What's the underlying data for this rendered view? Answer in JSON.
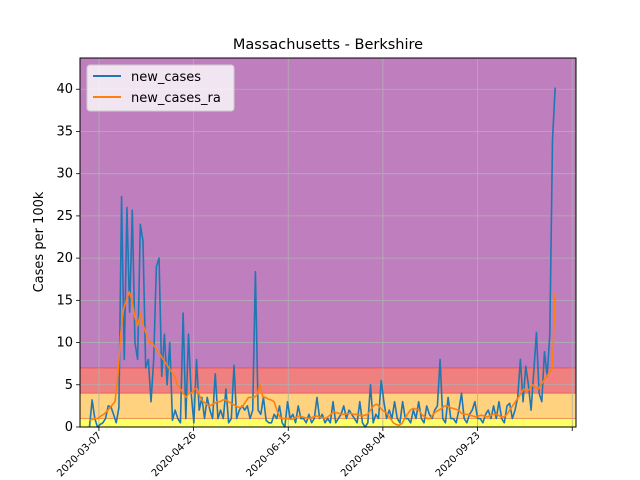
{
  "chart_data": {
    "type": "line",
    "title": "Massachusetts - Berkshire",
    "xlabel": "",
    "ylabel": "Cases per 100k",
    "x_start": "2020-03-02",
    "x_end": "2020-11-03",
    "xlim": [
      "2020-02-26",
      "2020-11-14"
    ],
    "ylim": [
      0,
      43.7
    ],
    "grid": true,
    "legend_position": "upper-left",
    "x_ticks": [
      "2020-03-07",
      "2020-04-26",
      "2020-06-15",
      "2020-08-04",
      "2020-09-23",
      "2020-11-12"
    ],
    "x_tick_labels": [
      "2020-03-07",
      "2020-04-26",
      "2020-06-15",
      "2020-08-04",
      "2020-09-23",
      ""
    ],
    "y_ticks": [
      0,
      5,
      10,
      15,
      20,
      25,
      30,
      35,
      40
    ],
    "y_tick_labels": [
      "0",
      "5",
      "10",
      "15",
      "20",
      "25",
      "30",
      "35",
      "40"
    ],
    "bands": [
      {
        "from": 0,
        "to": 1,
        "color": "#ffff66"
      },
      {
        "from": 1,
        "to": 4,
        "color": "#ffd27f"
      },
      {
        "from": 4,
        "to": 7,
        "color": "#f07f7f"
      },
      {
        "from": 7,
        "to": 43.7,
        "color": "#bf7fbf"
      }
    ],
    "series": [
      {
        "name": "new_cases",
        "color": "#1f77b4",
        "values": [
          0,
          3.2,
          1,
          0,
          0.3,
          0.5,
          1,
          2.5,
          2.4,
          1.5,
          0.5,
          2.3,
          27.3,
          8,
          26,
          13.6,
          25.7,
          10,
          8,
          24,
          22,
          7,
          8,
          3,
          8,
          19,
          20,
          6,
          11,
          5,
          10,
          0.8,
          2,
          1,
          0.5,
          13.5,
          1,
          11,
          4,
          0.5,
          8,
          2,
          3.5,
          1,
          3.5,
          2,
          1,
          6.3,
          1,
          2,
          1,
          4.5,
          0.5,
          1,
          7.3,
          1,
          2,
          2.5,
          2,
          2.5,
          1,
          2,
          18.4,
          2,
          1.5,
          3.5,
          0.8,
          0.5,
          0.5,
          1.5,
          1,
          2.5,
          0.5,
          0,
          3,
          1,
          1.5,
          0.5,
          2.5,
          1,
          1,
          0.5,
          1.5,
          0.5,
          1,
          3.5,
          1,
          1.5,
          0.5,
          1,
          0.5,
          3,
          0.5,
          1,
          1.5,
          2.5,
          1,
          2,
          1.5,
          1,
          0.5,
          3,
          0.5,
          0,
          0.5,
          5,
          0.5,
          1.5,
          1,
          5.5,
          3,
          1,
          2,
          1,
          3,
          1,
          0.5,
          3,
          1,
          1,
          0.5,
          2,
          1,
          3,
          1,
          0.5,
          2.5,
          1.5,
          1,
          2,
          2.5,
          8,
          1,
          0.5,
          3.5,
          1,
          1,
          0.5,
          2,
          4,
          1,
          0.5,
          1.5,
          2,
          3,
          1,
          1,
          0.5,
          1.5,
          2,
          1,
          2.5,
          1,
          3,
          1,
          0.5,
          2.5,
          2.8,
          1,
          2,
          3.5,
          8,
          3,
          7.2,
          5,
          2,
          6.5,
          11.2,
          4,
          3,
          8.9,
          6,
          11,
          34,
          40.2
        ]
      },
      {
        "name": "new_cases_ra",
        "color": "#ff7f0e",
        "values": [
          0.8,
          0.9,
          1,
          1,
          1.3,
          1.5,
          1.8,
          2.2,
          2.6,
          3,
          6,
          11,
          14,
          15,
          16,
          15,
          13,
          12,
          13.5,
          12,
          11,
          10,
          10,
          9.5,
          9,
          8.5,
          8,
          7.5,
          7,
          6.5,
          6,
          5,
          4.5,
          4,
          3.5,
          4,
          4,
          4.5,
          4.5,
          3.5,
          3,
          2.8,
          2.5,
          2.6,
          2.8,
          3,
          3,
          3.2,
          3.2,
          3,
          2.8,
          2.6,
          2.4,
          2.3,
          2.5,
          3,
          3.5,
          3.5,
          3.5,
          3.8,
          5,
          3.6,
          3.5,
          3.3,
          3.2,
          3,
          2,
          1.2,
          1,
          1,
          1,
          0.9,
          1,
          1.2,
          1.3,
          1.2,
          1.1,
          1,
          1.1,
          1.2,
          1.3,
          1.2,
          1.1,
          1,
          1.2,
          1.5,
          1.8,
          1.7,
          1.6,
          1.5,
          1.5,
          1.6,
          1.6,
          1.5,
          1.5,
          1.4,
          1.3,
          1.4,
          1.5,
          2,
          2.5,
          2.7,
          2.5,
          2,
          1.8,
          1.5,
          1,
          0.5,
          0.3,
          0.2,
          0.4,
          1,
          1.5,
          2,
          2.2,
          2.1,
          2,
          1.5,
          1.2,
          1,
          1,
          1.5,
          1.8,
          2,
          2.2,
          2.5,
          2.5,
          2.3,
          2.2,
          2.1,
          2,
          1.6,
          1.5,
          1.5,
          1.4,
          1.3,
          1.2,
          1.3,
          1.4,
          1.3,
          1.2,
          1.3,
          1.5,
          1.5,
          1.4,
          1.2,
          1.2,
          1.5,
          2,
          2.5,
          3,
          3.5,
          4,
          4.5,
          4.2,
          4.5,
          5,
          4.7,
          4.5,
          5,
          5.5,
          6,
          6.5,
          7,
          16
        ]
      }
    ]
  }
}
